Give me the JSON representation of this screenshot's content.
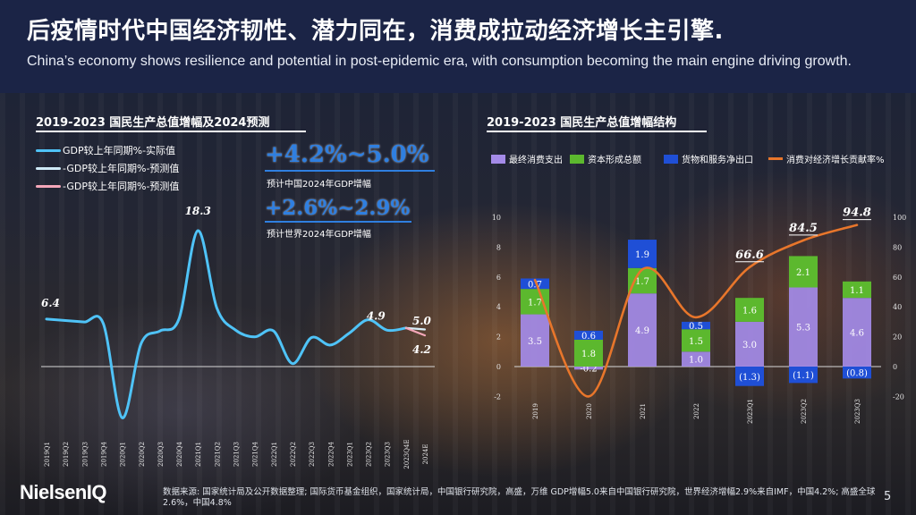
{
  "header": {
    "title_zh": "后疫情时代中国经济韧性、潜力同在，消费成拉动经济增长主引擎.",
    "title_en": "China’s economy shows resilience and potential in post-epidemic era, with consumption becoming the main engine driving growth."
  },
  "left_section": {
    "title": "2019-2023 国民生产总值增幅及2024预测",
    "legend": [
      {
        "label": "GDP较上年同期%-实际值",
        "color": "#4fc3f7"
      },
      {
        "label": "-GDP较上年同期%-预测值",
        "color": "#cfeaf7"
      },
      {
        "label": "-GDP较上年同期%-预测值",
        "color": "#f4a7b9"
      }
    ],
    "highlight_china": {
      "value": "+4.2%~5.0%",
      "caption": "预计中国2024年GDP增幅"
    },
    "highlight_world": {
      "value": "+2.6%~2.9%",
      "caption": "预计世界2024年GDP增幅"
    }
  },
  "right_section": {
    "title": "2019-2023 国民生产总值增幅结构",
    "legend": [
      {
        "label": "最终消费支出",
        "color": "#a48be8"
      },
      {
        "label": "资本形成总额",
        "color": "#5cb82e"
      },
      {
        "label": "货物和服务净出口",
        "color": "#1f4fd6"
      },
      {
        "label": "消费对经济增长贡献率%",
        "color": "#e8762b"
      }
    ]
  },
  "chart_data": [
    {
      "type": "line",
      "title": "2019-2023 国民生产总值增幅及2024预测",
      "x": [
        "2019Q1",
        "2019Q2",
        "2019Q3",
        "2019Q4",
        "2020Q1",
        "2020Q2",
        "2020Q3",
        "2020Q4",
        "2021Q1",
        "2021Q2",
        "2021Q3",
        "2021Q4",
        "2022Q1",
        "2022Q2",
        "2022Q3",
        "2022Q4",
        "2023Q1",
        "2023Q2",
        "2023Q3",
        "2023Q4E",
        "2024E"
      ],
      "series": [
        {
          "name": "GDP较上年同期%-实际值",
          "values": [
            6.4,
            6.2,
            6.0,
            5.8,
            -6.9,
            3.1,
            4.8,
            6.4,
            18.3,
            7.9,
            4.9,
            4.0,
            4.8,
            0.4,
            3.9,
            2.9,
            4.5,
            6.3,
            4.9,
            5.2,
            null
          ]
        },
        {
          "name": "-GDP较上年同期%-预测值",
          "values": [
            null,
            null,
            null,
            null,
            null,
            null,
            null,
            null,
            null,
            null,
            null,
            null,
            null,
            null,
            null,
            null,
            null,
            null,
            null,
            5.2,
            5.0
          ]
        },
        {
          "name": "-GDP较上年同期%-预测值",
          "values": [
            null,
            null,
            null,
            null,
            null,
            null,
            null,
            null,
            null,
            null,
            null,
            null,
            null,
            null,
            null,
            null,
            null,
            null,
            null,
            5.2,
            4.2
          ]
        }
      ],
      "data_labels": [
        {
          "x": "2019Q1",
          "text": "6.4"
        },
        {
          "x": "2021Q1",
          "text": "18.3"
        },
        {
          "x": "2023Q3",
          "text": "4.9"
        },
        {
          "x": "2024E",
          "text": "5.0"
        },
        {
          "x": "2024E",
          "text": "4.2"
        }
      ],
      "ylim": [
        -8,
        20
      ]
    },
    {
      "type": "bar",
      "stacked": true,
      "title": "2019-2023 国民生产总值增幅结构",
      "categories": [
        "2019",
        "2020",
        "2021",
        "2022",
        "2023Q1",
        "2023Q2",
        "2023Q3"
      ],
      "series": [
        {
          "name": "最终消费支出",
          "values": [
            3.5,
            -0.2,
            4.9,
            1.0,
            3.0,
            5.3,
            4.6
          ],
          "labels": [
            "3.5",
            "-0.2",
            "4.9",
            "1.0",
            "3.0",
            "5.3",
            "4.6"
          ]
        },
        {
          "name": "资本形成总额",
          "values": [
            1.7,
            1.8,
            1.7,
            1.5,
            1.6,
            2.1,
            1.1
          ],
          "labels": [
            "1.7",
            "1.8",
            "1.7",
            "1.5",
            "1.6",
            "2.1",
            "1.1"
          ]
        },
        {
          "name": "货物和服务净出口",
          "values": [
            0.7,
            0.6,
            1.9,
            0.5,
            -1.3,
            -1.1,
            -0.8
          ],
          "labels": [
            "0.7",
            "0.6",
            "1.9",
            "0.5",
            "(1.3)",
            "(1.1)",
            "(0.8)"
          ]
        },
        {
          "name": "消费对经济增长贡献率%",
          "type": "line",
          "axis": "right",
          "values": [
            58,
            -20,
            65,
            33,
            66.6,
            84.5,
            94.8
          ],
          "labels": [
            "",
            "",
            "",
            "",
            "66.6",
            "84.5",
            "94.8"
          ]
        }
      ],
      "y_left_ticks": [
        "-2",
        "0",
        "2",
        "4",
        "6",
        "8",
        "10"
      ],
      "y_right_ticks": [
        "-20",
        "0",
        "20",
        "40",
        "60",
        "80",
        "100"
      ],
      "ylim": [
        -2,
        10
      ],
      "ylim_right": [
        -20,
        100
      ]
    }
  ],
  "footer": {
    "logo": "NielsenIQ",
    "source": "数据来源: 国家统计局及公开数据整理; 国际货币基金组织，国家统计局，中国银行研究院，高盛，万维 GDP增幅5.0来自中国银行研究院，世界经济增幅2.9%来自IMF，中国4.2%; 高盛全球2.6%，中国4.8%",
    "page": "5"
  }
}
